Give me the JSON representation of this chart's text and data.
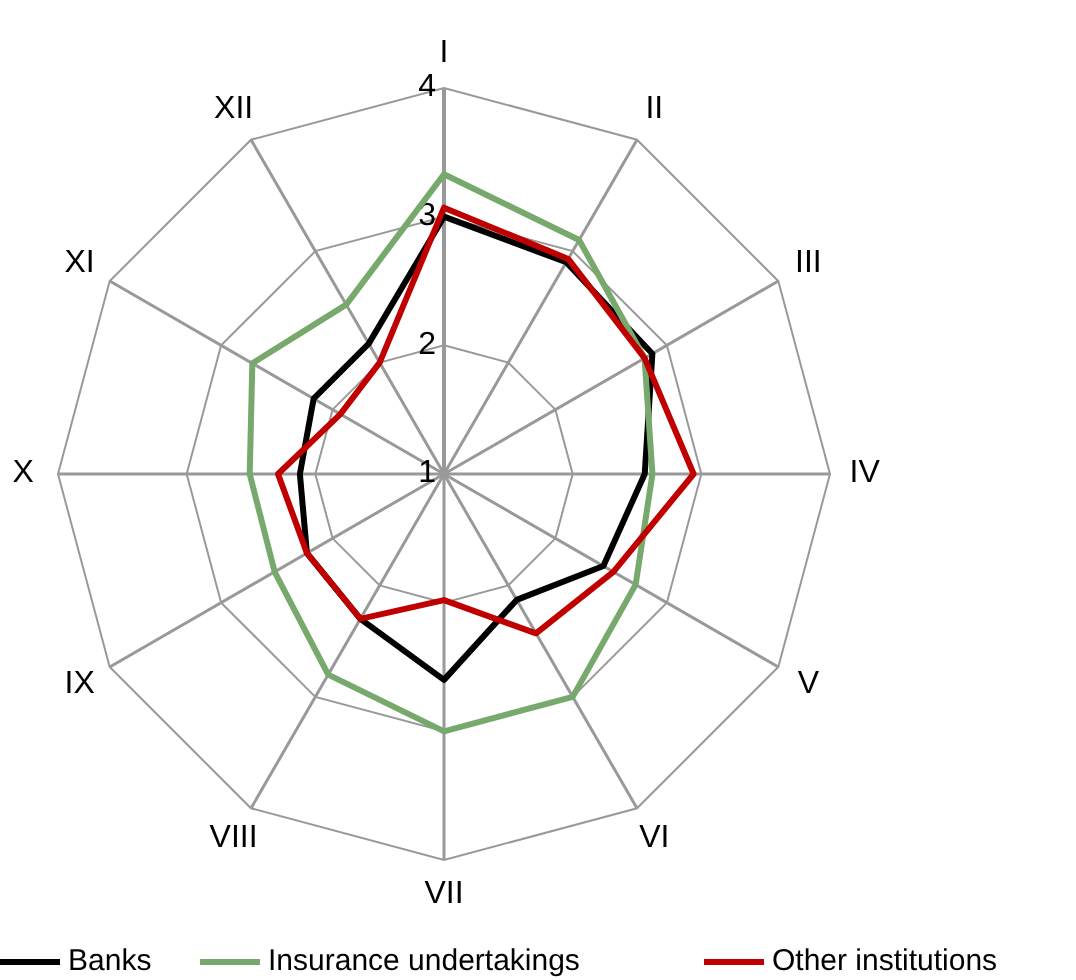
{
  "chart_data": {
    "type": "radar",
    "categories": [
      "I",
      "II",
      "III",
      "IV",
      "V",
      "VI",
      "VII",
      "VIII",
      "IX",
      "X",
      "XI",
      "XII"
    ],
    "ylim": [
      1,
      4
    ],
    "yticks": [
      1,
      2,
      3,
      4
    ],
    "grid": true,
    "legend": "bottom",
    "marker": "none",
    "series": [
      {
        "name": "Banks",
        "color": "#000000",
        "values": [
          3.0,
          2.9,
          2.87,
          2.56,
          2.43,
          2.13,
          2.6,
          2.3,
          2.23,
          2.12,
          2.17,
          2.17
        ]
      },
      {
        "name": "Insurance undertakings",
        "color": "#77a96c",
        "values": [
          3.33,
          3.1,
          2.8,
          2.62,
          2.72,
          3.0,
          3.0,
          2.8,
          2.52,
          2.51,
          2.72,
          2.52
        ]
      },
      {
        "name": "Other institutions",
        "color": "#c00000",
        "values": [
          3.07,
          2.93,
          2.8,
          2.94,
          2.52,
          2.43,
          1.98,
          2.3,
          2.23,
          2.29,
          1.93,
          2.0
        ]
      }
    ]
  }
}
